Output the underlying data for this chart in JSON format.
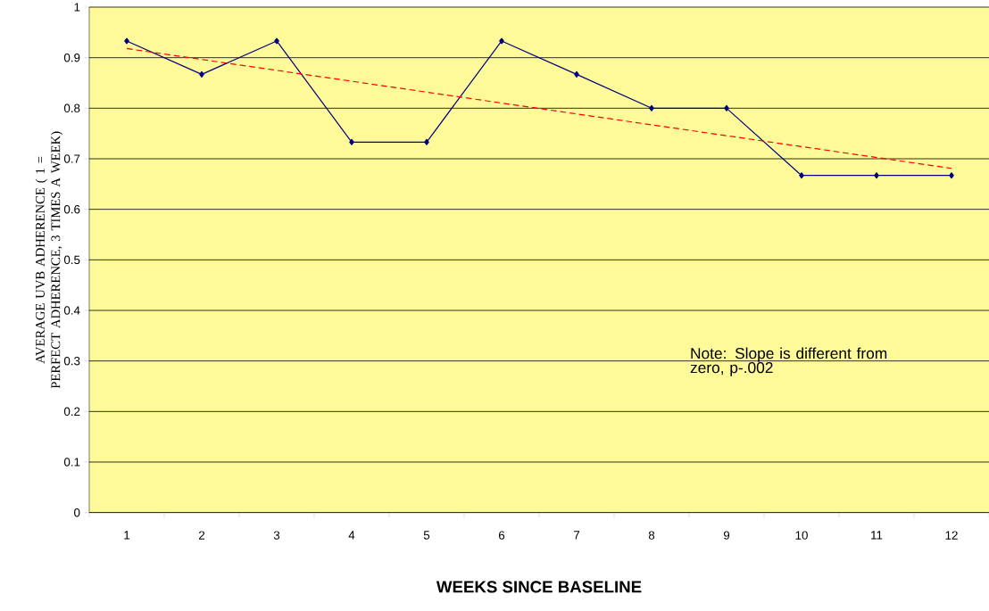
{
  "chart_data": {
    "type": "line",
    "xlabel": "WEEKS SINCE BASELINE",
    "ylabel": "AVERAGE UVB ADHERENCE ( 1 = PERFECT ADHERENCE, 3 TIMES A WEEK)",
    "categories": [
      "1",
      "2",
      "3",
      "4",
      "5",
      "6",
      "7",
      "8",
      "9",
      "10",
      "11",
      "12"
    ],
    "series": [
      {
        "color": "#000080",
        "marker": "diamond",
        "line_style": "solid",
        "values": [
          0.933,
          0.867,
          0.933,
          0.733,
          0.733,
          0.933,
          0.867,
          0.8,
          0.8,
          0.667,
          0.667,
          0.667
        ]
      },
      {
        "color": "#ff0000",
        "marker": "none",
        "line_style": "dashed",
        "x": [
          "1",
          "12"
        ],
        "values": [
          0.918,
          0.681
        ]
      }
    ],
    "ylim": [
      0,
      1
    ],
    "yticks": [
      0,
      0.1,
      0.2,
      0.3,
      0.4,
      0.5,
      0.6,
      0.7,
      0.8,
      0.9,
      1
    ],
    "grid": "y",
    "annotations": [
      "Note: Slope is different from zero, p-.002"
    ]
  }
}
